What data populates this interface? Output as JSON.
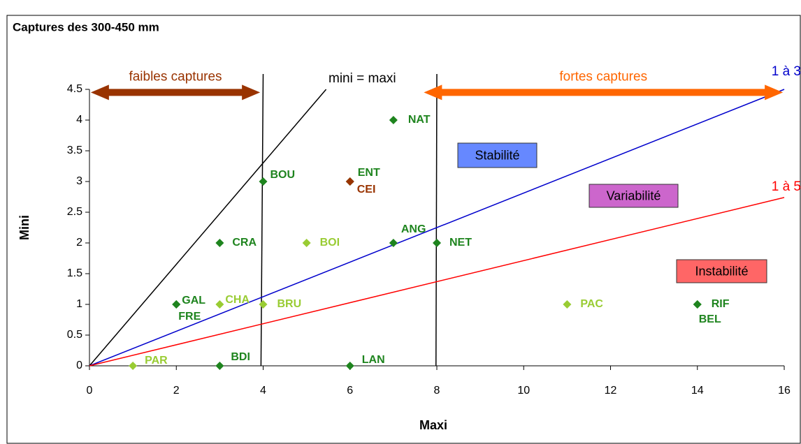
{
  "chart_data": {
    "type": "scatter",
    "title": "Captures des 300-450 mm",
    "x_label": "Maxi",
    "y_label": "Mini",
    "xlim": [
      0,
      16
    ],
    "xticks": [
      0,
      2,
      4,
      6,
      8,
      10,
      12,
      14,
      16
    ],
    "ylim": [
      0,
      4.5
    ],
    "yticks": [
      0,
      0.5,
      1,
      1.5,
      2,
      2.5,
      3,
      3.5,
      4,
      4.5
    ],
    "grid": false,
    "points": [
      {
        "label": "PAR",
        "x": 1,
        "y": 0,
        "color": "#99cc33"
      },
      {
        "label": "BDI",
        "x": 3,
        "y": 0,
        "color": "#1e841e"
      },
      {
        "label": "LAN",
        "x": 6,
        "y": 0,
        "color": "#1e841e"
      },
      {
        "label": "GAL",
        "x": 2,
        "y": 1,
        "color": "#1e841e"
      },
      {
        "label": "FRE",
        "x": 2,
        "y": 1,
        "color": "#1e841e"
      },
      {
        "label": "CHA",
        "x": 3,
        "y": 1,
        "color": "#99cc33"
      },
      {
        "label": "BRU",
        "x": 4,
        "y": 1,
        "color": "#99cc33"
      },
      {
        "label": "PAC",
        "x": 11,
        "y": 1,
        "color": "#99cc33"
      },
      {
        "label": "RIF",
        "x": 14,
        "y": 1,
        "color": "#1e841e"
      },
      {
        "label": "BEL",
        "x": 14,
        "y": 1,
        "color": "#1e841e"
      },
      {
        "label": "CRA",
        "x": 3,
        "y": 2,
        "color": "#1e841e"
      },
      {
        "label": "BOI",
        "x": 5,
        "y": 2,
        "color": "#99cc33"
      },
      {
        "label": "ANG",
        "x": 7,
        "y": 2,
        "color": "#1e841e"
      },
      {
        "label": "NET",
        "x": 8,
        "y": 2,
        "color": "#1e841e"
      },
      {
        "label": "BOU",
        "x": 4,
        "y": 3,
        "color": "#1e841e"
      },
      {
        "label": "ENT",
        "x": 6,
        "y": 3,
        "color": "#1e841e"
      },
      {
        "label": "CEI",
        "x": 6,
        "y": 3,
        "color": "#993300"
      },
      {
        "label": "NAT",
        "x": 7,
        "y": 4,
        "color": "#1e841e"
      }
    ],
    "lines": [
      {
        "label": "mini = maxi",
        "x": [
          0,
          5.45
        ],
        "y": [
          0,
          4.5
        ],
        "color": "#000000"
      },
      {
        "label": "1 à 3",
        "x": [
          0,
          16
        ],
        "y": [
          0,
          4.5
        ],
        "color": "#0000cc"
      },
      {
        "label": "1 à 5",
        "x": [
          0,
          16
        ],
        "y": [
          0,
          2.74
        ],
        "color": "#ff0000"
      }
    ],
    "vlines": [
      {
        "x": [
          4,
          3.95
        ],
        "y": [
          4.75,
          0
        ],
        "color": "#000000"
      },
      {
        "x": [
          8,
          7.98
        ],
        "y": [
          4.75,
          0
        ],
        "color": "#000000"
      }
    ],
    "arrows": [
      {
        "label": "faibles captures",
        "x": [
          0.03,
          3.93
        ],
        "y": 4.45,
        "color": "#993300"
      },
      {
        "label": "fortes captures",
        "x": [
          7.7,
          15.97
        ],
        "y": 4.45,
        "color": "#ff6600"
      }
    ],
    "zones": [
      {
        "label": "Stabilité",
        "color": "#6688ff"
      },
      {
        "label": "Variabilité",
        "color": "#cc66cc"
      },
      {
        "label": "Instabilité",
        "color": "#ff6666"
      }
    ]
  }
}
